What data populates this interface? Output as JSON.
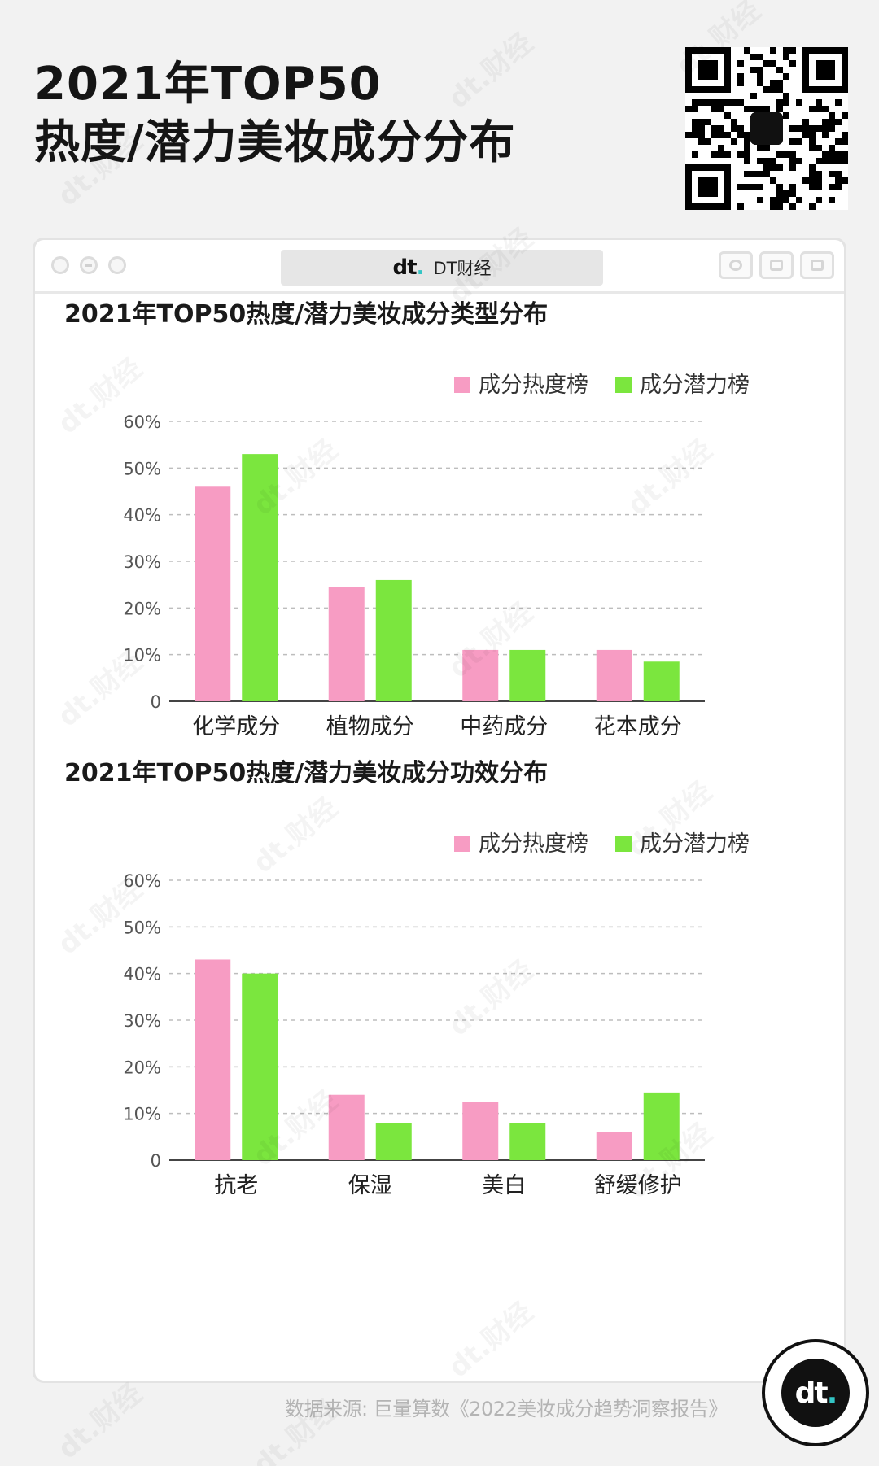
{
  "page": {
    "title_line1": "2021年TOP50",
    "title_line2": "热度/潜力美妆成分分布",
    "brand": "DT财经",
    "logo_text": "dt",
    "source": "数据来源: 巨量算数《2022美妆成分趋势洞察报告》",
    "watermark": "dt.财经"
  },
  "colors": {
    "hot": "#f79cc3",
    "potential": "#7be63e",
    "grid": "#bdbdbd",
    "axis": "#444444",
    "highlight": "#c6f0b0"
  },
  "chart_data": [
    {
      "type": "bar",
      "title": "2021年TOP50热度/潜力美妆成分类型分布",
      "categories": [
        "化学成分",
        "植物成分",
        "中药成分",
        "花本成分"
      ],
      "series": [
        {
          "name": "成分热度榜",
          "values": [
            46,
            24.5,
            11,
            11
          ]
        },
        {
          "name": "成分潜力榜",
          "values": [
            53,
            26,
            11,
            8.5
          ]
        }
      ],
      "ylim": [
        0,
        60
      ],
      "yticks": [
        "0",
        "10%",
        "20%",
        "30%",
        "40%",
        "50%",
        "60%"
      ],
      "xlabel": "",
      "ylabel": "",
      "grid": true,
      "legend_position": "top-right"
    },
    {
      "type": "bar",
      "title": "2021年TOP50热度/潜力美妆成分功效分布",
      "categories": [
        "抗老",
        "保湿",
        "美白",
        "舒缓修护"
      ],
      "series": [
        {
          "name": "成分热度榜",
          "values": [
            43,
            14,
            12.5,
            6
          ]
        },
        {
          "name": "成分潜力榜",
          "values": [
            40,
            8,
            8,
            14.5
          ]
        }
      ],
      "ylim": [
        0,
        60
      ],
      "yticks": [
        "0",
        "10%",
        "20%",
        "30%",
        "40%",
        "50%",
        "60%"
      ],
      "xlabel": "",
      "ylabel": "",
      "grid": true,
      "legend_position": "top-right"
    }
  ]
}
